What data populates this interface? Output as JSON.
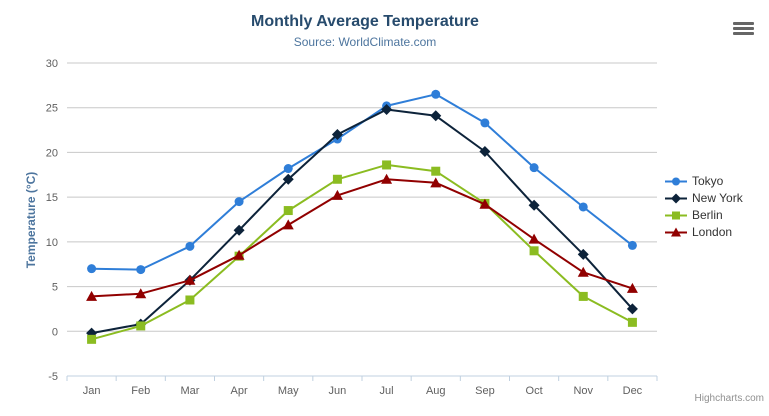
{
  "chart_data": {
    "type": "line",
    "title": "Monthly Average Temperature",
    "subtitle": "Source: WorldClimate.com",
    "xlabel": "",
    "ylabel": "Temperature (°C)",
    "categories": [
      "Jan",
      "Feb",
      "Mar",
      "Apr",
      "May",
      "Jun",
      "Jul",
      "Aug",
      "Sep",
      "Oct",
      "Nov",
      "Dec"
    ],
    "ylim": [
      -5,
      30
    ],
    "yticks": [
      -5,
      0,
      5,
      10,
      15,
      20,
      25,
      30
    ],
    "grid": true,
    "legend_position": "right-middle",
    "series": [
      {
        "name": "Tokyo",
        "color": "#2f7ed8",
        "marker": "circle",
        "values": [
          7.0,
          6.9,
          9.5,
          14.5,
          18.2,
          21.5,
          25.2,
          26.5,
          23.3,
          18.3,
          13.9,
          9.6
        ]
      },
      {
        "name": "New York",
        "color": "#0d233a",
        "marker": "diamond",
        "values": [
          -0.2,
          0.8,
          5.7,
          11.3,
          17.0,
          22.0,
          24.8,
          24.1,
          20.1,
          14.1,
          8.6,
          2.5
        ]
      },
      {
        "name": "Berlin",
        "color": "#8bbc21",
        "marker": "square",
        "values": [
          -0.9,
          0.6,
          3.5,
          8.4,
          13.5,
          17.0,
          18.6,
          17.9,
          14.3,
          9.0,
          3.9,
          1.0
        ]
      },
      {
        "name": "London",
        "color": "#910000",
        "marker": "triangle",
        "values": [
          3.9,
          4.2,
          5.7,
          8.5,
          11.9,
          15.2,
          17.0,
          16.6,
          14.2,
          10.3,
          6.6,
          4.8
        ]
      }
    ],
    "style": {
      "grid_color": "#c8c8c8",
      "axis_line_color": "#c0d0e0",
      "title_color": "#274b6d",
      "subtitle_color": "#4d759e",
      "axis_label_color": "#606060",
      "legend_text_color": "#333333"
    }
  },
  "credits": {
    "label": "Highcharts.com"
  },
  "export_menu": {
    "icon": "hamburger-icon"
  }
}
